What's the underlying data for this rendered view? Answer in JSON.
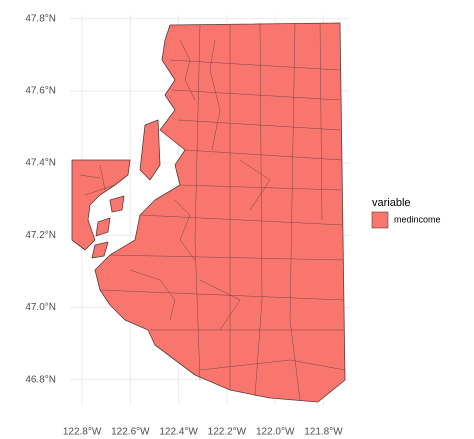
{
  "chart_data": {
    "type": "map",
    "legend_title": "variable",
    "series": [
      {
        "name": "medincome",
        "color": "#F8766D"
      }
    ],
    "legend": "right",
    "grid": true,
    "xlim": [
      -122.85,
      -121.69
    ],
    "ylim": [
      46.73,
      47.81
    ],
    "xticks": [
      {
        "value": -122.8,
        "label": "122.8°W"
      },
      {
        "value": -122.6,
        "label": "122.6°W"
      },
      {
        "value": -122.4,
        "label": "122.4°W"
      },
      {
        "value": -122.2,
        "label": "122.2°W"
      },
      {
        "value": -122.0,
        "label": "122.0°W"
      },
      {
        "value": -121.8,
        "label": "121.8°W"
      }
    ],
    "yticks": [
      {
        "value": 46.8,
        "label": "46.8°N"
      },
      {
        "value": 47.0,
        "label": "47.0°N"
      },
      {
        "value": 47.2,
        "label": "47.2°N"
      },
      {
        "value": 47.4,
        "label": "47.4°N"
      },
      {
        "value": 47.6,
        "label": "47.6°N"
      },
      {
        "value": 47.8,
        "label": "47.8°N"
      }
    ]
  }
}
